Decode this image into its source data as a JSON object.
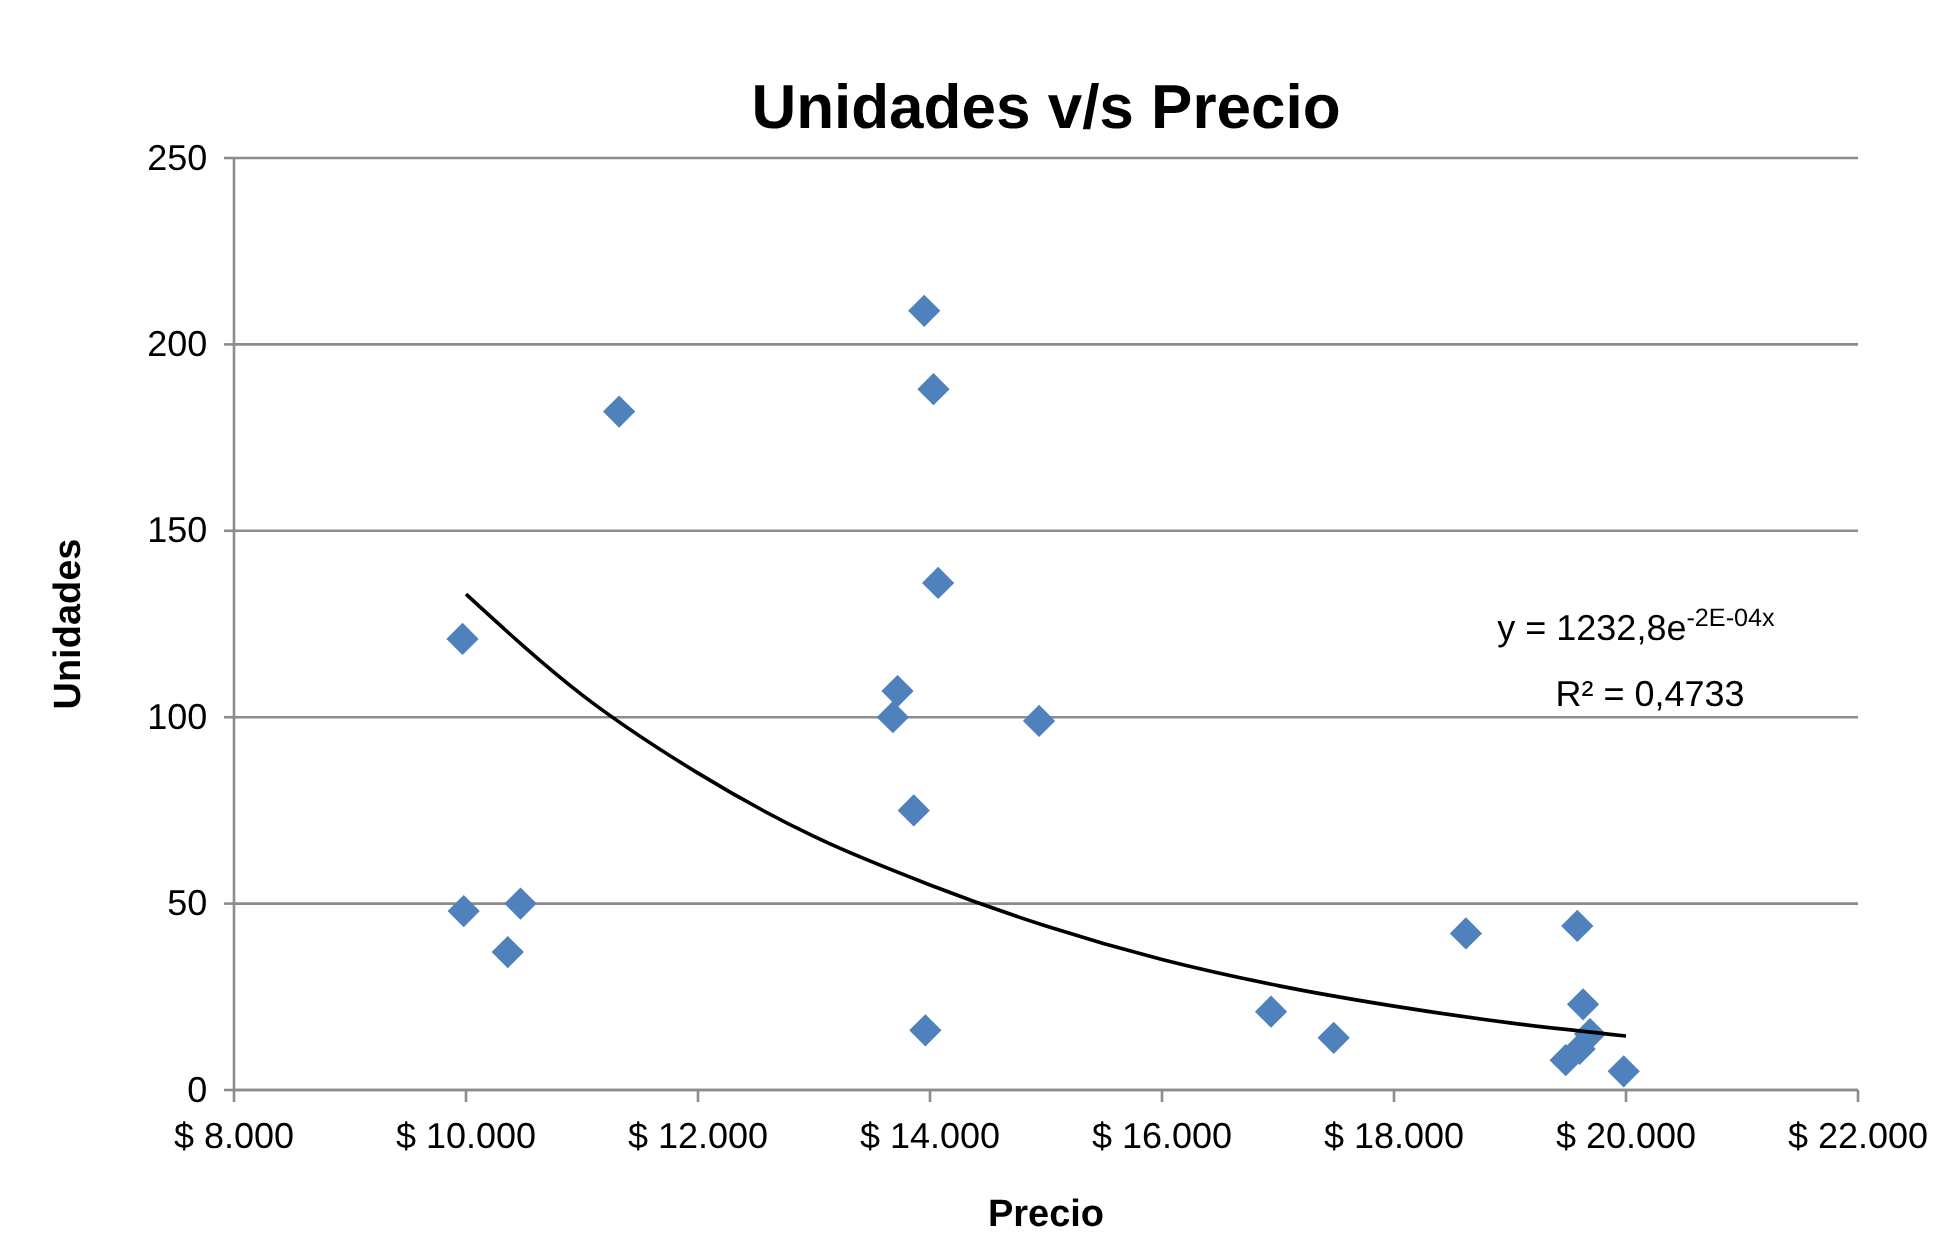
{
  "chart_data": {
    "type": "scatter",
    "title": "Unidades v/s Precio",
    "xlabel": "Precio",
    "ylabel": "Unidades",
    "xlim": [
      8000,
      22000
    ],
    "xticks": [
      {
        "value": 8000,
        "label": "$ 8.000"
      },
      {
        "value": 10000,
        "label": "$ 10.000"
      },
      {
        "value": 12000,
        "label": "$ 12.000"
      },
      {
        "value": 14000,
        "label": "$ 14.000"
      },
      {
        "value": 16000,
        "label": "$ 16.000"
      },
      {
        "value": 18000,
        "label": "$ 18.000"
      },
      {
        "value": 20000,
        "label": "$ 20.000"
      },
      {
        "value": 22000,
        "label": "$ 22.000"
      }
    ],
    "ylim": [
      0,
      250
    ],
    "yticks": [
      0,
      50,
      100,
      150,
      200,
      250
    ],
    "grid": "y",
    "series": [
      {
        "marker": "diamond",
        "color": "#4f81bd",
        "x": [
          9970,
          9980,
          10360,
          10470,
          11320,
          13950,
          14030,
          14070,
          13720,
          13680,
          13860,
          13960,
          14940,
          16940,
          17480,
          18620,
          19580,
          19630,
          19690,
          19480,
          19600,
          19980
        ],
        "values": [
          121,
          48,
          37,
          50,
          182,
          209,
          188,
          136,
          107,
          100,
          75,
          16,
          99,
          21,
          14,
          42,
          44,
          23,
          15,
          8,
          11,
          5
        ]
      },
      {
        "type": "line",
        "color": "#000000",
        "x": [
          10000,
          11000,
          12000,
          13000,
          14000,
          15000,
          16000,
          17000,
          18000,
          19000,
          20000
        ],
        "values": [
          133,
          106,
          85,
          68,
          55,
          44,
          35,
          28,
          22.5,
          18,
          14.5
        ]
      }
    ],
    "annotations": [
      "y = 1232,8e$^{-2E-04x}$",
      "R² = 0,4733"
    ]
  }
}
